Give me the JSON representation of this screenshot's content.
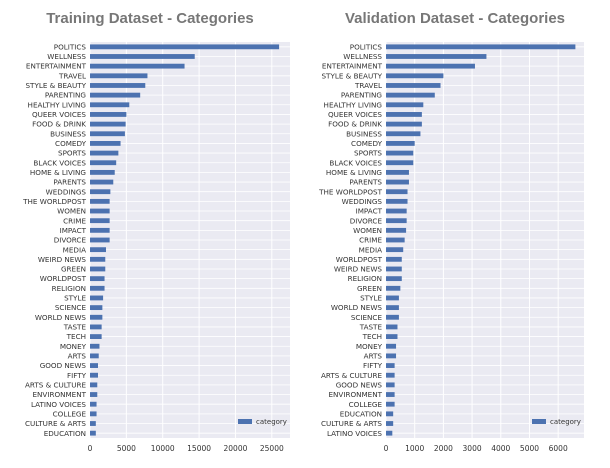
{
  "chart_data": [
    {
      "type": "bar",
      "orientation": "horizontal",
      "title": "Training Dataset - Categories",
      "categories": [
        "POLITICS",
        "WELLNESS",
        "ENTERTAINMENT",
        "TRAVEL",
        "STYLE & BEAUTY",
        "PARENTING",
        "HEALTHY LIVING",
        "QUEER VOICES",
        "FOOD & DRINK",
        "BUSINESS",
        "COMEDY",
        "SPORTS",
        "BLACK VOICES",
        "HOME & LIVING",
        "PARENTS",
        "WEDDINGS",
        "THE WORLDPOST",
        "WOMEN",
        "CRIME",
        "IMPACT",
        "DIVORCE",
        "MEDIA",
        "WEIRD NEWS",
        "GREEN",
        "WORLDPOST",
        "RELIGION",
        "STYLE",
        "SCIENCE",
        "WORLD NEWS",
        "TASTE",
        "TECH",
        "MONEY",
        "ARTS",
        "GOOD NEWS",
        "FIFTY",
        "ARTS & CULTURE",
        "ENVIRONMENT",
        "LATINO VOICES",
        "COLLEGE",
        "CULTURE & ARTS",
        "EDUCATION"
      ],
      "series": [
        {
          "name": "category",
          "values": [
            26000,
            14400,
            13000,
            7900,
            7600,
            6900,
            5400,
            5000,
            4900,
            4800,
            4200,
            3900,
            3600,
            3400,
            3200,
            2800,
            2700,
            2700,
            2700,
            2700,
            2700,
            2200,
            2100,
            2100,
            2000,
            2000,
            1800,
            1700,
            1700,
            1600,
            1600,
            1300,
            1200,
            1100,
            1100,
            1000,
            1000,
            900,
            900,
            800,
            800
          ]
        }
      ],
      "xlim": [
        0,
        27500
      ],
      "xticks": [
        0,
        5000,
        10000,
        15000,
        20000,
        25000
      ],
      "grid": true,
      "legend": "bottom-right",
      "color": "#4c72b0"
    },
    {
      "type": "bar",
      "orientation": "horizontal",
      "title": "Validation Dataset - Categories",
      "categories": [
        "POLITICS",
        "WELLNESS",
        "ENTERTAINMENT",
        "STYLE & BEAUTY",
        "TRAVEL",
        "PARENTING",
        "HEALTHY LIVING",
        "QUEER VOICES",
        "FOOD & DRINK",
        "BUSINESS",
        "COMEDY",
        "SPORTS",
        "BLACK VOICES",
        "HOME & LIVING",
        "PARENTS",
        "THE WORLDPOST",
        "WEDDINGS",
        "IMPACT",
        "DIVORCE",
        "WOMEN",
        "CRIME",
        "MEDIA",
        "WORLDPOST",
        "WEIRD NEWS",
        "RELIGION",
        "GREEN",
        "STYLE",
        "WORLD NEWS",
        "SCIENCE",
        "TASTE",
        "TECH",
        "MONEY",
        "ARTS",
        "FIFTY",
        "ARTS & CULTURE",
        "GOOD NEWS",
        "ENVIRONMENT",
        "COLLEGE",
        "EDUCATION",
        "CULTURE & ARTS",
        "LATINO VOICES"
      ],
      "series": [
        {
          "name": "category",
          "values": [
            6600,
            3500,
            3100,
            2000,
            1900,
            1700,
            1300,
            1250,
            1250,
            1200,
            1000,
            950,
            950,
            800,
            800,
            750,
            750,
            720,
            720,
            700,
            650,
            600,
            550,
            550,
            550,
            500,
            450,
            450,
            450,
            400,
            400,
            350,
            350,
            300,
            300,
            300,
            300,
            300,
            250,
            250,
            220
          ]
        }
      ],
      "xlim": [
        0,
        6900
      ],
      "xticks": [
        0,
        1000,
        2000,
        3000,
        4000,
        5000,
        6000
      ],
      "grid": true,
      "legend": "bottom-right",
      "color": "#4c72b0"
    }
  ]
}
